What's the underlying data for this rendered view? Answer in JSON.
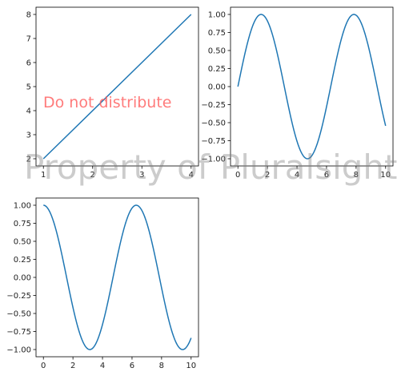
{
  "chart_data": [
    {
      "type": "line",
      "function": "x^2 segment, linear y = 2x",
      "x": [
        1,
        4
      ],
      "y": [
        2,
        8
      ],
      "xlim": [
        0.85,
        4.15
      ],
      "ylim": [
        1.7,
        8.3
      ],
      "xticks": [
        1,
        2,
        3,
        4
      ],
      "yticks": [
        2,
        3,
        4,
        5,
        6,
        7,
        8
      ],
      "line_color": "#1f77b4"
    },
    {
      "type": "line",
      "function": "sin(x)",
      "x_range": [
        0,
        10
      ],
      "xlim": [
        -0.5,
        10.5
      ],
      "ylim": [
        -1.1,
        1.1
      ],
      "xticks": [
        0,
        2,
        4,
        6,
        8,
        10
      ],
      "yticks": [
        -1.0,
        -0.75,
        -0.5,
        -0.25,
        0.0,
        0.25,
        0.5,
        0.75,
        1.0
      ],
      "ytick_labels": [
        "−1.00",
        "−0.75",
        "−0.50",
        "−0.25",
        "0.00",
        "0.25",
        "0.50",
        "0.75",
        "1.00"
      ],
      "line_color": "#1f77b4"
    },
    {
      "type": "line",
      "function": "cos(x)",
      "x_range": [
        0,
        10
      ],
      "xlim": [
        -0.5,
        10.5
      ],
      "ylim": [
        -1.1,
        1.1
      ],
      "xticks": [
        0,
        2,
        4,
        6,
        8,
        10
      ],
      "yticks": [
        -1.0,
        -0.75,
        -0.5,
        -0.25,
        0.0,
        0.25,
        0.5,
        0.75,
        1.0
      ],
      "ytick_labels": [
        "−1.00",
        "−0.75",
        "−0.50",
        "−0.25",
        "0.00",
        "0.25",
        "0.50",
        "0.75",
        "1.00"
      ],
      "line_color": "#1f77b4"
    }
  ],
  "watermarks": {
    "main": "Property of Pluralsight",
    "secondary": "Do not distribute"
  }
}
